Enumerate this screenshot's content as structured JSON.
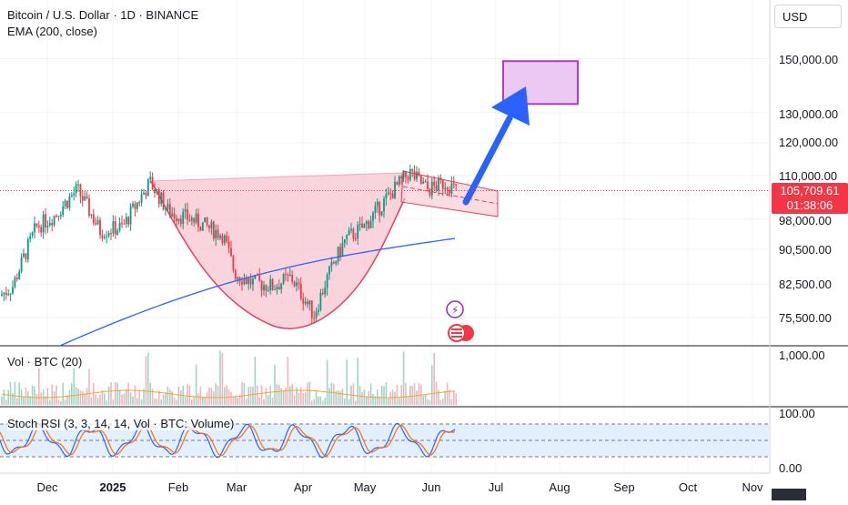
{
  "header": {
    "title": "Bitcoin / U.S. Dollar · 1D · BINANCE",
    "indicator": "EMA (200, close)"
  },
  "axis": {
    "currency": "USD",
    "price_ticks": [
      "150,000.00",
      "130,000.00",
      "120,000.00",
      "110,000.00",
      "98,000.00",
      "90,500.00",
      "82,500.00",
      "75,500.00"
    ],
    "volume_tick": "1,000.00",
    "rsi_ticks": [
      "100.00",
      "0.00"
    ],
    "last_price": "105,709.61",
    "countdown": "01:38:06"
  },
  "time_axis": {
    "labels": [
      "Dec",
      "2025",
      "Feb",
      "Mar",
      "Apr",
      "May",
      "Jun",
      "Jul",
      "Aug",
      "Sep",
      "Oct",
      "Nov"
    ],
    "bold": [
      "2025"
    ]
  },
  "panes": {
    "volume_label": "Vol · BTC (20)",
    "stoch_label": "Stoch RSI (3, 3, 14, 14, Vol · BTC: Volume)"
  },
  "colors": {
    "up": "#089981",
    "down": "#f23645",
    "ema": "#2962ff",
    "cup_fill": "#f7c6d0",
    "cup_stroke": "#e0415e",
    "target_box": "#b03bc7",
    "arrow": "#2962ff",
    "k_line": "#2962ff",
    "d_line": "#ff6d00"
  },
  "chart_data": {
    "type": "candlestick",
    "symbol": "Bitcoin / U.S. Dollar",
    "interval": "1D",
    "exchange": "BINANCE",
    "last_price": 105709.61,
    "price_axis_ticks": [
      150000,
      130000,
      120000,
      110000,
      98000,
      90500,
      82500,
      75500
    ],
    "y_scale": "log",
    "ylim": [
      69000,
      175000
    ],
    "approx_close_path": [
      {
        "date": "Nov 2024",
        "close": 82000
      },
      {
        "date": "Dec 2024",
        "close": 96000
      },
      {
        "date": "Dec 17 2024",
        "close": 106000
      },
      {
        "date": "Jan 2025",
        "close": 95000
      },
      {
        "date": "Jan 20 2025",
        "close": 108000
      },
      {
        "date": "Feb 2025",
        "close": 98000
      },
      {
        "date": "Feb 27 2025",
        "close": 84000
      },
      {
        "date": "Mar 2025",
        "close": 83000
      },
      {
        "date": "Apr 8 2025",
        "close": 76000
      },
      {
        "date": "Apr 22 2025",
        "close": 93000
      },
      {
        "date": "May 2025",
        "close": 97000
      },
      {
        "date": "May 22 2025",
        "close": 111000
      },
      {
        "date": "Jun 13 2025",
        "close": 105709.61
      }
    ],
    "ema200_path": [
      {
        "date": "Dec 2024",
        "value": 70000
      },
      {
        "date": "Feb 2025",
        "value": 78000
      },
      {
        "date": "Apr 2025",
        "value": 85000
      },
      {
        "date": "May 2025",
        "value": 89000
      },
      {
        "date": "Jun 2025",
        "value": 93000
      }
    ],
    "target_zone": {
      "low": 133000,
      "high": 149000,
      "from": "Jul 2025",
      "to": "Aug 2025"
    },
    "stoch_rsi_ticks": [
      100,
      0
    ],
    "volume_tick": 1000
  }
}
